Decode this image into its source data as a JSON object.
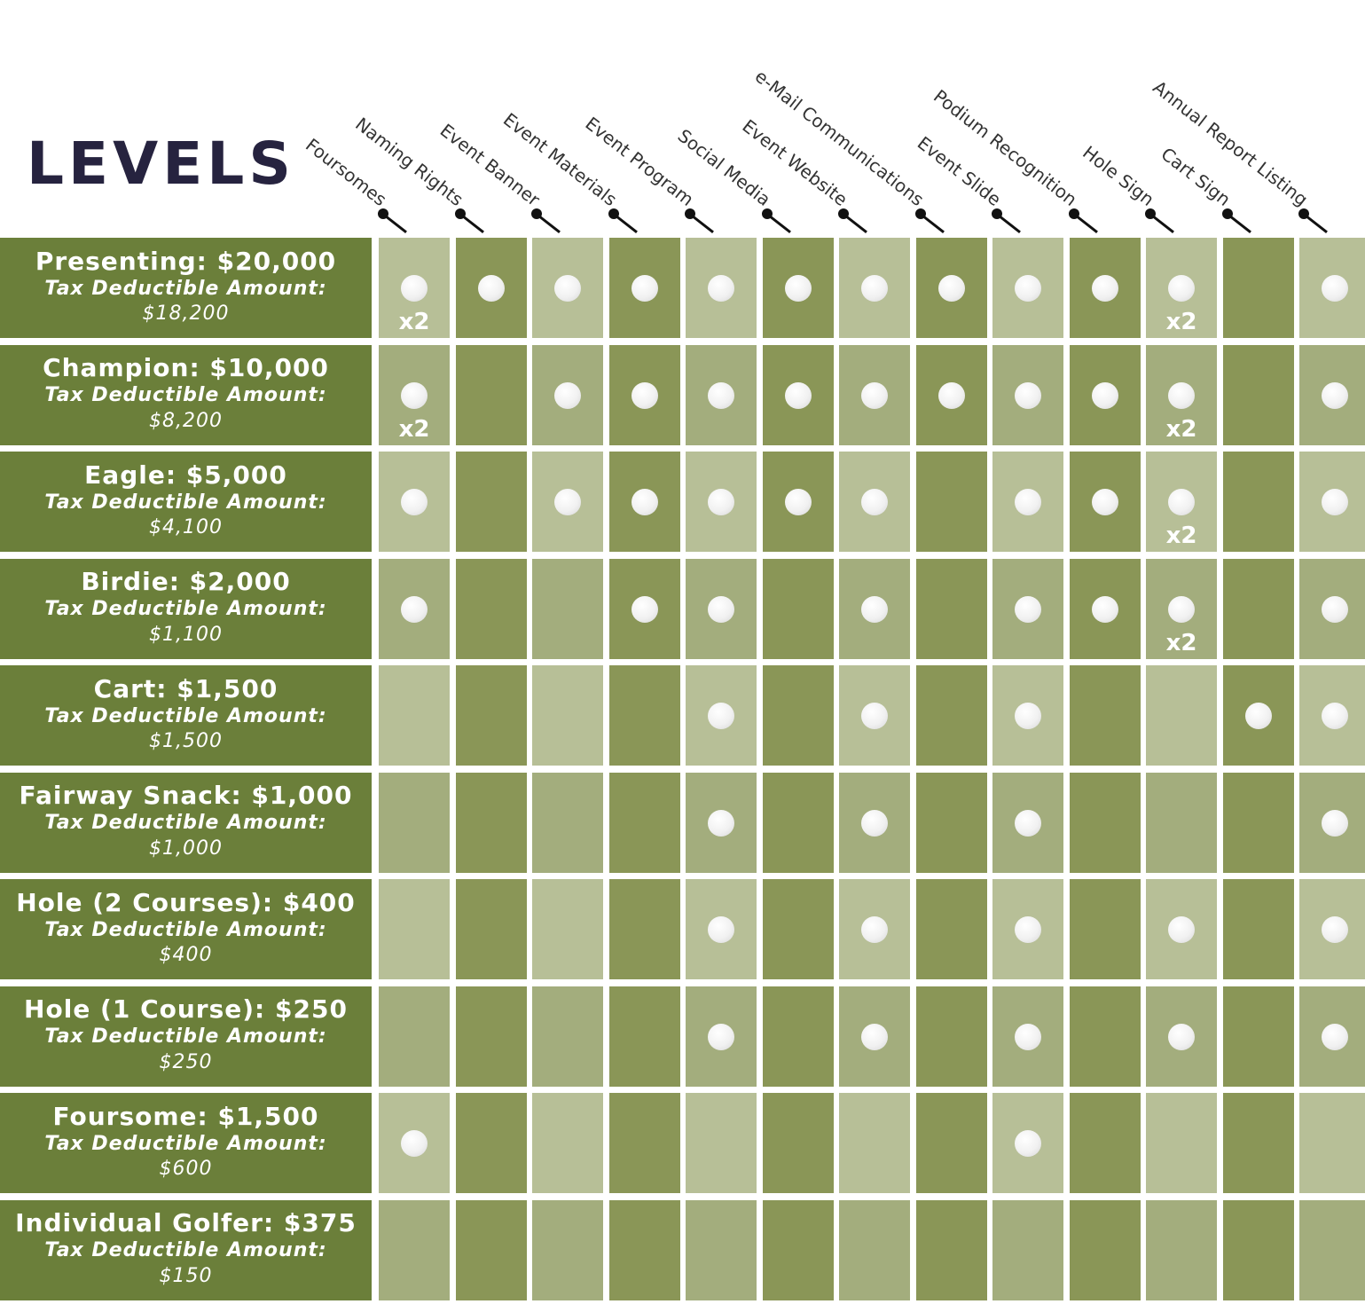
{
  "heading": "LEVELS",
  "colors": {
    "heading": "#26233f",
    "level_bg": "#6b7f3a",
    "col_light": "#b7bf97",
    "col_dark": "#8a9657",
    "col_mid": "#a3ad7d",
    "ball": "#f2f2f2"
  },
  "benefits": [
    "Foursomes",
    "Naming Rights",
    "Event Banner",
    "Event Materials",
    "Event Program",
    "Social Media",
    "Event Website",
    "e-Mail Communications",
    "Event Slide",
    "Podium Recognition",
    "Hole Sign",
    "Cart Sign",
    "Annual Report Listing"
  ],
  "tax_label": "Tax Deductible Amount:",
  "levels": [
    {
      "name": "Presenting: $20,000",
      "tax": "Tax Deductible Amount:",
      "amount": "$18,200",
      "cells": [
        "x2",
        "yes",
        "yes",
        "yes",
        "yes",
        "yes",
        "yes",
        "yes",
        "yes",
        "yes",
        "x2",
        "",
        "yes"
      ]
    },
    {
      "name": "Champion: $10,000",
      "tax": "Tax Deductible Amount:",
      "amount": "$8,200",
      "cells": [
        "x2",
        "",
        "yes",
        "yes",
        "yes",
        "yes",
        "yes",
        "yes",
        "yes",
        "yes",
        "x2",
        "",
        "yes"
      ]
    },
    {
      "name": "Eagle: $5,000",
      "tax": "Tax Deductible Amount:",
      "amount": "$4,100",
      "cells": [
        "yes",
        "",
        "yes",
        "yes",
        "yes",
        "yes",
        "yes",
        "",
        "yes",
        "yes",
        "x2",
        "",
        "yes"
      ]
    },
    {
      "name": "Birdie: $2,000",
      "tax": "Tax Deductible Amount:",
      "amount": "$1,100",
      "cells": [
        "yes",
        "",
        "",
        "yes",
        "yes",
        "",
        "yes",
        "",
        "yes",
        "yes",
        "x2",
        "",
        "yes"
      ]
    },
    {
      "name": "Cart: $1,500",
      "tax": "Tax Deductible Amount:",
      "amount": "$1,500",
      "cells": [
        "",
        "",
        "",
        "",
        "yes",
        "",
        "yes",
        "",
        "yes",
        "",
        "",
        "yes",
        "yes"
      ]
    },
    {
      "name": "Fairway Snack: $1,000",
      "tax": "Tax Deductible Amount:",
      "amount": "$1,000",
      "cells": [
        "",
        "",
        "",
        "",
        "yes",
        "",
        "yes",
        "",
        "yes",
        "",
        "",
        "",
        "yes"
      ]
    },
    {
      "name": "Hole (2 Courses): $400",
      "tax": "Tax Deductible Amount:",
      "amount": "$400",
      "cells": [
        "",
        "",
        "",
        "",
        "yes",
        "",
        "yes",
        "",
        "yes",
        "",
        "yes",
        "",
        "yes"
      ]
    },
    {
      "name": "Hole (1 Course): $250",
      "tax": "Tax Deductible Amount:",
      "amount": "$250",
      "cells": [
        "",
        "",
        "",
        "",
        "yes",
        "",
        "yes",
        "",
        "yes",
        "",
        "yes",
        "",
        "yes"
      ]
    },
    {
      "name": "Foursome: $1,500",
      "tax": "Tax Deductible Amount:",
      "amount": "$600",
      "cells": [
        "yes",
        "",
        "",
        "",
        "",
        "",
        "",
        "",
        "yes",
        "",
        "",
        "",
        ""
      ]
    },
    {
      "name": "Individual Golfer: $375",
      "tax": "Tax Deductible Amount:",
      "amount": "$150",
      "cells": [
        "",
        "",
        "",
        "",
        "",
        "",
        "",
        "",
        "",
        "",
        "",
        "",
        ""
      ]
    }
  ]
}
